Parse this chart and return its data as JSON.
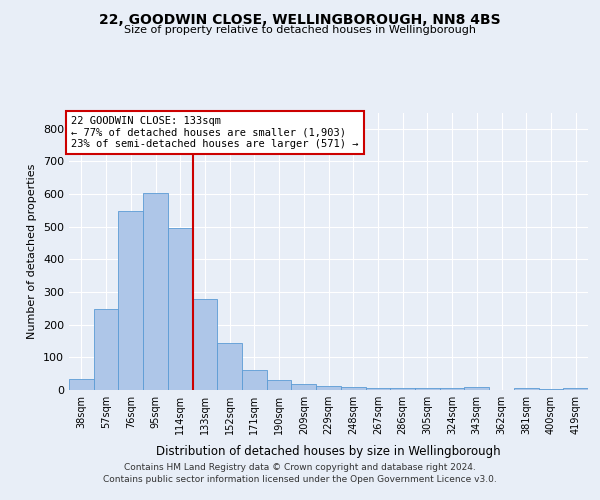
{
  "title": "22, GOODWIN CLOSE, WELLINGBOROUGH, NN8 4BS",
  "subtitle": "Size of property relative to detached houses in Wellingborough",
  "xlabel": "Distribution of detached houses by size in Wellingborough",
  "ylabel": "Number of detached properties",
  "categories": [
    "38sqm",
    "57sqm",
    "76sqm",
    "95sqm",
    "114sqm",
    "133sqm",
    "152sqm",
    "171sqm",
    "190sqm",
    "209sqm",
    "229sqm",
    "248sqm",
    "267sqm",
    "286sqm",
    "305sqm",
    "324sqm",
    "343sqm",
    "362sqm",
    "381sqm",
    "400sqm",
    "419sqm"
  ],
  "values": [
    33,
    247,
    547,
    604,
    495,
    278,
    143,
    62,
    30,
    17,
    12,
    10,
    6,
    5,
    5,
    5,
    8,
    1,
    6,
    2,
    7
  ],
  "bar_color": "#aec6e8",
  "bar_edge_color": "#5b9bd5",
  "vline_color": "#cc0000",
  "vline_index": 4.5,
  "annotation_text": "22 GOODWIN CLOSE: 133sqm\n← 77% of detached houses are smaller (1,903)\n23% of semi-detached houses are larger (571) →",
  "annotation_box_color": "#ffffff",
  "annotation_box_edge_color": "#cc0000",
  "ylim": [
    0,
    850
  ],
  "yticks": [
    0,
    100,
    200,
    300,
    400,
    500,
    600,
    700,
    800
  ],
  "bg_color": "#e8eef7",
  "plot_bg_color": "#e8eef7",
  "footer_line1": "Contains HM Land Registry data © Crown copyright and database right 2024.",
  "footer_line2": "Contains public sector information licensed under the Open Government Licence v3.0."
}
